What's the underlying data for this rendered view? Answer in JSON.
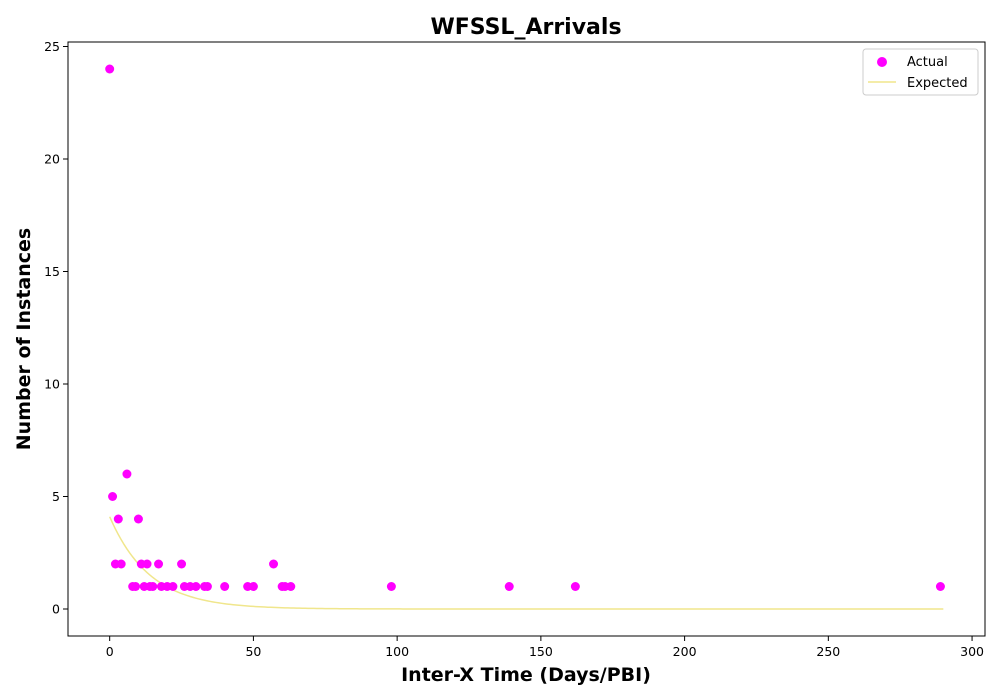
{
  "chart_data": {
    "type": "scatter",
    "title": "WFSSL_Arrivals",
    "xlabel": "Inter-X Time (Days/PBI)",
    "ylabel": "Number of Instances",
    "xlim": [
      -14.5,
      304.5
    ],
    "ylim": [
      -1.2,
      25.2
    ],
    "xticks": [
      0,
      50,
      100,
      150,
      200,
      250,
      300
    ],
    "yticks": [
      0,
      5,
      10,
      15,
      20,
      25
    ],
    "grid": false,
    "legend_position": "top-right",
    "series": [
      {
        "name": "Actual",
        "kind": "scatter",
        "color": "#ff00ff",
        "points": [
          [
            0,
            24
          ],
          [
            1,
            5
          ],
          [
            2,
            2
          ],
          [
            3,
            4
          ],
          [
            4,
            2
          ],
          [
            6,
            6
          ],
          [
            8,
            1
          ],
          [
            9,
            1
          ],
          [
            10,
            4
          ],
          [
            11,
            2
          ],
          [
            12,
            1
          ],
          [
            13,
            2
          ],
          [
            14,
            1
          ],
          [
            15,
            1
          ],
          [
            17,
            2
          ],
          [
            18,
            1
          ],
          [
            20,
            1
          ],
          [
            22,
            1
          ],
          [
            25,
            2
          ],
          [
            26,
            1
          ],
          [
            28,
            1
          ],
          [
            30,
            1
          ],
          [
            33,
            1
          ],
          [
            34,
            1
          ],
          [
            40,
            1
          ],
          [
            48,
            1
          ],
          [
            50,
            1
          ],
          [
            57,
            2
          ],
          [
            60,
            1
          ],
          [
            61,
            1
          ],
          [
            63,
            1
          ],
          [
            98,
            1
          ],
          [
            139,
            1
          ],
          [
            162,
            1
          ],
          [
            289,
            1
          ]
        ]
      },
      {
        "name": "Expected",
        "kind": "line",
        "color": "#f0e68c",
        "function": "4.1 * exp(-x / 14)",
        "x_range": [
          0,
          290
        ]
      }
    ]
  }
}
